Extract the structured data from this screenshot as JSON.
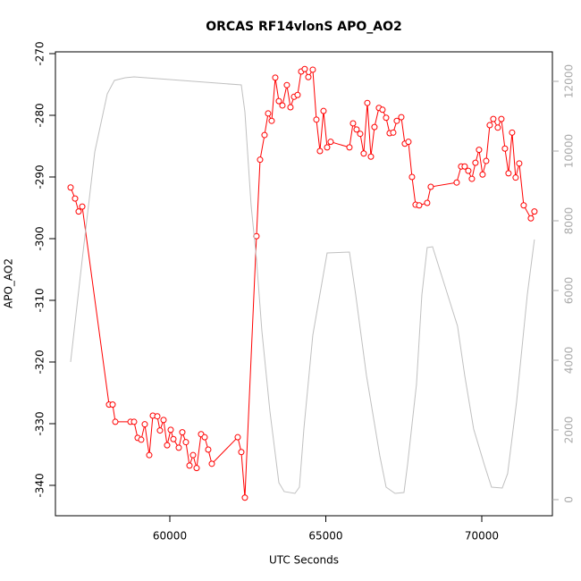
{
  "chart_data": {
    "type": "line",
    "title": "ORCAS RF14vlonS APO_AO2",
    "x_label": "UTC Seconds",
    "y_label": "APO_AO2",
    "xlim": [
      56332,
      72264
    ],
    "xticks": [
      60000,
      65000,
      70000
    ],
    "ylim": [
      -344.93,
      -269.71
    ],
    "yticks": [
      -340,
      -330,
      -320,
      -310,
      -300,
      -290,
      -280,
      -270
    ],
    "y2lim": [
      -462,
      12846
    ],
    "y2ticks": [
      0,
      2000,
      4000,
      6000,
      8000,
      10000,
      12000
    ],
    "grid": false,
    "series": [
      {
        "color": "#ff0000",
        "markers": true,
        "x": [
          56819,
          56962,
          57077,
          57192,
          58051,
          58166,
          58252,
          58739,
          58853,
          58968,
          59082,
          59197,
          59340,
          59455,
          59598,
          59684,
          59799,
          59913,
          60028,
          60114,
          60286,
          60400,
          60515,
          60630,
          60744,
          60859,
          61002,
          61117,
          61231,
          61346,
          62177,
          62291,
          62406,
          62778,
          62893,
          63036,
          63151,
          63265,
          63380,
          63495,
          63609,
          63752,
          63867,
          63982,
          64096,
          64211,
          64325,
          64440,
          64583,
          64698,
          64812,
          64927,
          65042,
          65156,
          65758,
          65873,
          65987,
          66102,
          66216,
          66331,
          66446,
          66560,
          66703,
          66818,
          66933,
          67047,
          67162,
          67276,
          67420,
          67534,
          67649,
          67763,
          67878,
          67993,
          68250,
          68365,
          69196,
          69339,
          69453,
          69568,
          69683,
          69797,
          69912,
          70026,
          70141,
          70256,
          70370,
          70513,
          70628,
          70743,
          70857,
          70972,
          71086,
          71201,
          71344,
          71574,
          71688
        ],
        "values": [
          -291.7,
          -293.5,
          -295.6,
          -294.8,
          -326.9,
          -326.9,
          -329.7,
          -329.7,
          -329.7,
          -332.3,
          -332.6,
          -330.1,
          -335.1,
          -328.7,
          -328.8,
          -331.1,
          -329.4,
          -333.5,
          -331.0,
          -332.5,
          -333.9,
          -331.4,
          -333.0,
          -336.8,
          -335.1,
          -337.2,
          -331.7,
          -332.2,
          -334.2,
          -336.5,
          -332.2,
          -334.6,
          -342.0,
          -299.6,
          -287.2,
          -283.2,
          -279.7,
          -280.9,
          -273.9,
          -277.7,
          -278.4,
          -275.1,
          -278.7,
          -277.0,
          -276.7,
          -272.9,
          -272.5,
          -273.8,
          -272.6,
          -280.7,
          -285.8,
          -279.3,
          -285.2,
          -284.3,
          -285.2,
          -281.3,
          -282.3,
          -283.0,
          -286.2,
          -278.0,
          -286.7,
          -281.9,
          -278.8,
          -279.1,
          -280.4,
          -282.9,
          -282.8,
          -280.9,
          -280.3,
          -284.6,
          -284.3,
          -290.0,
          -294.5,
          -294.6,
          -294.2,
          -291.6,
          -290.9,
          -288.3,
          -288.3,
          -289.0,
          -290.3,
          -287.7,
          -285.6,
          -289.6,
          -287.4,
          -281.6,
          -280.6,
          -282.0,
          -280.6,
          -285.4,
          -289.4,
          -282.8,
          -290.1,
          -287.8,
          -294.6,
          -296.7,
          -295.6
        ]
      },
      {
        "color": "#c0c0c0",
        "axis": "y2",
        "markers": false,
        "x": [
          56819,
          57192,
          57593,
          57994,
          58223,
          58567,
          58853,
          62291,
          62406,
          62606,
          62778,
          62950,
          63208,
          63495,
          63666,
          64010,
          64154,
          64297,
          64583,
          65042,
          65758,
          65959,
          66303,
          66732,
          66933,
          67219,
          67506,
          67620,
          67907,
          68079,
          68250,
          68422,
          69224,
          69453,
          69740,
          70083,
          70313,
          70656,
          70828,
          71115,
          71459,
          71688
        ],
        "values": [
          3949,
          6897,
          9974,
          11641,
          12026,
          12103,
          12128,
          11897,
          11128,
          8436,
          6897,
          4846,
          2538,
          487,
          231,
          179,
          359,
          2026,
          4718,
          7077,
          7103,
          5872,
          3564,
          1256,
          359,
          179,
          205,
          1000,
          3308,
          5872,
          7231,
          7256,
          4974,
          3564,
          2026,
          1000,
          359,
          333,
          744,
          2795,
          5872,
          7462
        ]
      }
    ]
  }
}
